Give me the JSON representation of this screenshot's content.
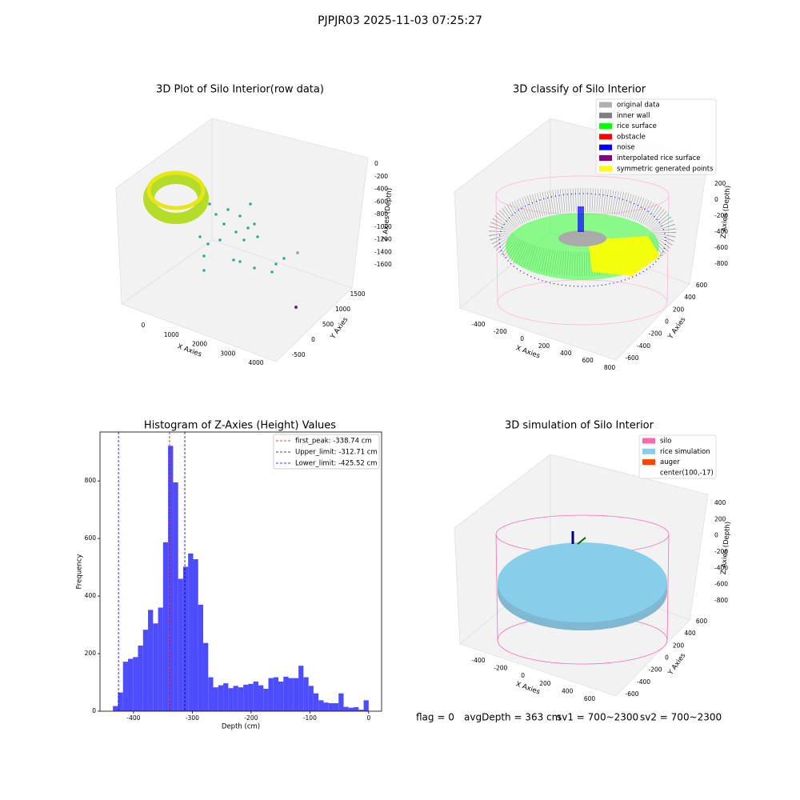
{
  "suptitle": "PJPJR03 2025-11-03 07:25:27",
  "footer": [
    "flag = 0",
    "avgDepth = 363 cm",
    "sv1 = 700~2300",
    "sv2 = 700~2300"
  ],
  "chart_data": [
    {
      "type": "scatter3d",
      "title": "3D Plot of Silo Interior(row data)",
      "xlabel": "X Axies",
      "ylabel": "Y Axies",
      "zlabel": "Z Axies (Depth)",
      "xticks": [
        0,
        1000,
        2000,
        3000,
        4000
      ],
      "yticks": [
        -500,
        0,
        500,
        1000,
        1500
      ],
      "zticks": [
        -1600,
        -1400,
        -1200,
        -1000,
        -800,
        -600,
        -400,
        -200,
        0
      ]
    },
    {
      "type": "scatter3d",
      "title": "3D classify of Silo Interior",
      "xlabel": "X Axies",
      "ylabel": "Y Axies",
      "zlabel": "Z Axies (Depth)",
      "xticks": [
        -400,
        -200,
        0,
        200,
        400,
        600,
        800
      ],
      "yticks": [
        -600,
        -400,
        -200,
        0,
        200,
        400,
        600
      ],
      "zticks": [
        -800,
        -600,
        -400,
        -200,
        0,
        200
      ],
      "series": [
        {
          "name": "original data",
          "color": "#b0b0b0"
        },
        {
          "name": "inner wall",
          "color": "#808080"
        },
        {
          "name": "rice surface",
          "color": "#00ff00"
        },
        {
          "name": "obstacle",
          "color": "#ff0000"
        },
        {
          "name": "noise",
          "color": "#0000ff"
        },
        {
          "name": "interpolated rice surface",
          "color": "#800080"
        },
        {
          "name": "symmetric generated points",
          "color": "#ffff00"
        }
      ]
    },
    {
      "type": "histogram",
      "title": "Histogram of Z-Axies (Height) Values",
      "xlabel": "Depth (cm)",
      "ylabel": "Frequency",
      "color": "#4d4dff",
      "bins": [
        -435.0,
        -426.5,
        -417.9,
        -409.4,
        -400.9,
        -392.4,
        -383.8,
        -375.3,
        -366.8,
        -358.2,
        -349.7,
        -341.2,
        -332.6,
        -324.1,
        -315.6,
        -307.1,
        -298.5,
        -290.0,
        -281.5,
        -272.9,
        -264.4,
        -255.9,
        -247.3,
        -238.8,
        -230.3,
        -221.8,
        -213.2,
        -204.7,
        -196.2,
        -187.6,
        -179.1,
        -170.6,
        -162.0,
        -153.5,
        -145.0,
        -136.5,
        -127.9,
        -119.4,
        -110.9,
        -102.3,
        -93.8,
        -85.3,
        -76.7,
        -68.2,
        -59.7,
        -51.2,
        -42.6,
        -34.1,
        -25.6,
        -17.0,
        -8.5,
        0.0
      ],
      "counts": [
        18,
        65,
        172,
        182,
        188,
        228,
        283,
        352,
        305,
        360,
        587,
        922,
        795,
        460,
        502,
        548,
        528,
        370,
        237,
        118,
        83,
        90,
        97,
        80,
        88,
        83,
        92,
        95,
        103,
        90,
        78,
        115,
        118,
        103,
        120,
        115,
        115,
        158,
        118,
        88,
        62,
        38,
        30,
        28,
        28,
        62,
        15,
        12,
        14,
        5,
        38
      ],
      "xlim": [
        -457,
        22
      ],
      "ylim": [
        0,
        970
      ],
      "xticks": [
        -400,
        -300,
        -200,
        -100,
        0
      ],
      "yticks": [
        0,
        200,
        400,
        600,
        800
      ],
      "vlines": [
        {
          "label": "first_peak: -338.74 cm",
          "value": -338.74,
          "color": "#ff0000"
        },
        {
          "label": "Upper_limit: -312.71 cm",
          "value": -312.71,
          "color": "#00008b"
        },
        {
          "label": "Lower_limit: -425.52 cm",
          "value": -425.52,
          "color": "#0000ff"
        }
      ],
      "legend": "upper right"
    },
    {
      "type": "scatter3d",
      "title": "3D simulation of Silo Interior",
      "xlabel": "X Axies",
      "ylabel": "Y Axies",
      "zlabel": "Z Axies (Depth)",
      "xticks": [
        -400,
        -200,
        0,
        200,
        400,
        600
      ],
      "yticks": [
        -600,
        -400,
        -200,
        0,
        200,
        400,
        600
      ],
      "zticks": [
        -800,
        -600,
        -400,
        -200,
        0,
        200,
        400
      ],
      "series": [
        {
          "name": "silo",
          "color": "#ff69b4"
        },
        {
          "name": "rice simulation",
          "color": "#87ceeb"
        },
        {
          "name": "auger",
          "color": "#ff4500"
        },
        {
          "name": "center(100,-17)"
        }
      ]
    }
  ]
}
